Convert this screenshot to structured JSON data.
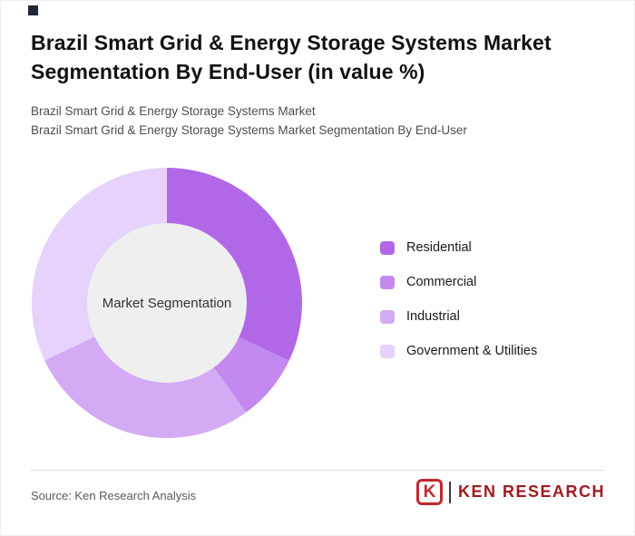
{
  "page": {
    "title": "Brazil Smart Grid & Energy Storage Systems Market Segmentation By End-User (in value %)",
    "subtitle1": "Brazil Smart Grid & Energy Storage Systems Market",
    "subtitle2": "Brazil Smart Grid & Energy Storage Systems Market Segmentation By End-User",
    "source": "Source: Ken Research Analysis"
  },
  "chart_data": {
    "type": "pie",
    "variant": "donut",
    "center_label": "Market Segmentation",
    "legend_position": "right",
    "start_angle_deg": 0,
    "segments": [
      {
        "label": "Residential",
        "value": 32,
        "color": "#b168e7"
      },
      {
        "label": "Commercial",
        "value": 8,
        "color": "#c389ef"
      },
      {
        "label": "Industrial",
        "value": 28,
        "color": "#d3abf4"
      },
      {
        "label": "Government & Utilities",
        "value": 32,
        "color": "#e6d2fa"
      }
    ],
    "hole_color": "#f0eff0"
  },
  "logo": {
    "mark": "K",
    "text": "KEN RESEARCH",
    "brand_color": "#c1272d"
  }
}
